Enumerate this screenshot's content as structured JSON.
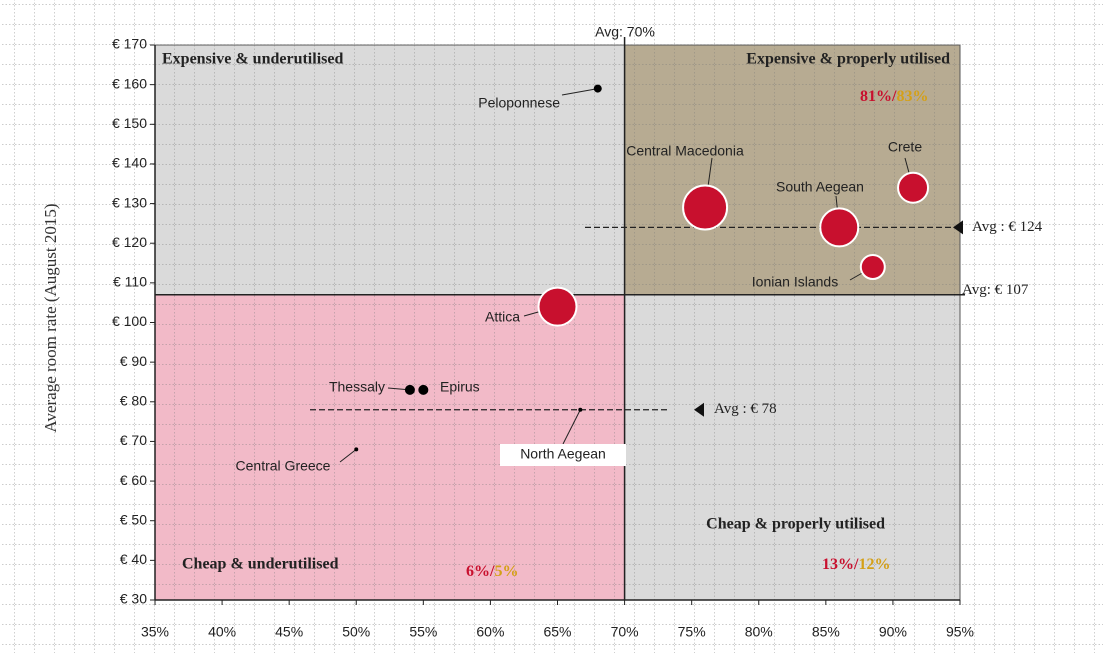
{
  "chart_data": {
    "type": "bubble",
    "y_label": "Average room rate (August 2015)",
    "xlim": [
      35,
      95
    ],
    "ylim": [
      30,
      170
    ],
    "xticks": [
      {
        "value": 35,
        "label": "35%"
      },
      {
        "value": 40,
        "label": "40%"
      },
      {
        "value": 45,
        "label": "45%"
      },
      {
        "value": 50,
        "label": "50%"
      },
      {
        "value": 55,
        "label": "55%"
      },
      {
        "value": 60,
        "label": "60%"
      },
      {
        "value": 65,
        "label": "65%"
      },
      {
        "value": 70,
        "label": "70%"
      },
      {
        "value": 75,
        "label": "75%"
      },
      {
        "value": 80,
        "label": "80%"
      },
      {
        "value": 85,
        "label": "85%"
      },
      {
        "value": 90,
        "label": "90%"
      },
      {
        "value": 95,
        "label": "95%"
      }
    ],
    "yticks": [
      {
        "value": 30,
        "label": "€ 30"
      },
      {
        "value": 40,
        "label": "€ 40"
      },
      {
        "value": 50,
        "label": "€ 50"
      },
      {
        "value": 60,
        "label": "€ 60"
      },
      {
        "value": 70,
        "label": "€ 70"
      },
      {
        "value": 80,
        "label": "€ 80"
      },
      {
        "value": 90,
        "label": "€ 90"
      },
      {
        "value": 100,
        "label": "€ 100"
      },
      {
        "value": 110,
        "label": "€ 110"
      },
      {
        "value": 120,
        "label": "€ 120"
      },
      {
        "value": 130,
        "label": "€ 130"
      },
      {
        "value": 140,
        "label": "€ 140"
      },
      {
        "value": 150,
        "label": "€ 150"
      },
      {
        "value": 160,
        "label": "€ 160"
      },
      {
        "value": 170,
        "label": "€ 170"
      }
    ],
    "points": {
      "labels": [
        "Peloponnese",
        "Central Macedonia",
        "Crete",
        "South Aegean",
        "Ionian Islands",
        "Attica",
        "Thessaly",
        "Epirus",
        "North Aegean",
        "Central Greece"
      ],
      "x": [
        68,
        76,
        91.5,
        86,
        88.5,
        65,
        54,
        55,
        66.7,
        50
      ],
      "y": [
        159,
        129,
        134,
        124,
        114,
        104,
        83,
        83,
        78,
        68
      ],
      "sizes": [
        4,
        22,
        15,
        19,
        12,
        19,
        5,
        5,
        2,
        2
      ],
      "colors": [
        "#000000",
        "#c8102e",
        "#c8102e",
        "#c8102e",
        "#c8102e",
        "#c8102e",
        "#000000",
        "#000000",
        "#000000",
        "#000000"
      ]
    },
    "reference_lines": [
      {
        "axis": "x",
        "value": 70,
        "label": "Avg: 70%"
      },
      {
        "axis": "y",
        "value": 107,
        "label": "Avg: € 107"
      },
      {
        "axis": "y",
        "value": 124,
        "label": "Avg : € 124",
        "style": "dashed"
      },
      {
        "axis": "y",
        "value": 78,
        "label": "Avg : € 78",
        "style": "dashed"
      }
    ],
    "quadrants": [
      {
        "label": "Expensive & underutilised",
        "color": "#dadada"
      },
      {
        "label": "Expensive & properly utilised",
        "color": "#b7ab92",
        "share_a": "81%/",
        "share_b": "83%"
      },
      {
        "label": "Cheap & underutilised",
        "color": "#f2bac8",
        "share_a": "6%/",
        "share_b": "5%"
      },
      {
        "label": "Cheap & properly utilised",
        "color": "#dadada",
        "share_a": "13%/",
        "share_b": "12%"
      }
    ],
    "share_colors": [
      "#c8102e",
      "#d4a017"
    ]
  }
}
